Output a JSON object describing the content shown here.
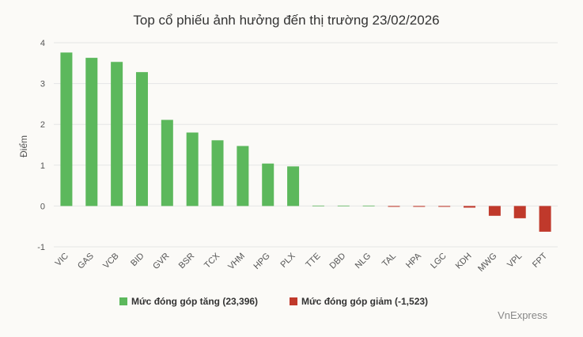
{
  "chart_data": {
    "type": "bar",
    "title": "Top cổ phiếu ảnh hưởng đến thị trường 23/02/2026",
    "ylabel": "Điểm",
    "xlabel": "",
    "ylim": [
      -1,
      4
    ],
    "yticks": [
      -1,
      0,
      1,
      2,
      3,
      4
    ],
    "grid": true,
    "legend_position": "bottom",
    "categories": [
      "VIC",
      "GAS",
      "VCB",
      "BID",
      "GVR",
      "BSR",
      "TCX",
      "VHM",
      "HPG",
      "PLX",
      "TTE",
      "DBD",
      "NLG",
      "TAL",
      "HPA",
      "LGC",
      "KDH",
      "MWG",
      "VPL",
      "FPT"
    ],
    "values": [
      3.76,
      3.63,
      3.53,
      3.28,
      2.11,
      1.8,
      1.61,
      1.47,
      1.04,
      0.97,
      0.01,
      0.01,
      0.01,
      -0.02,
      -0.02,
      -0.02,
      -0.04,
      -0.24,
      -0.3,
      -0.63
    ],
    "series": [
      {
        "name": "Mức đóng góp tăng (23,396)",
        "color": "#5cb85c"
      },
      {
        "name": "Mức đóng góp giảm (-1,523)",
        "color": "#c0392b"
      }
    ],
    "source": "VnExpress"
  }
}
